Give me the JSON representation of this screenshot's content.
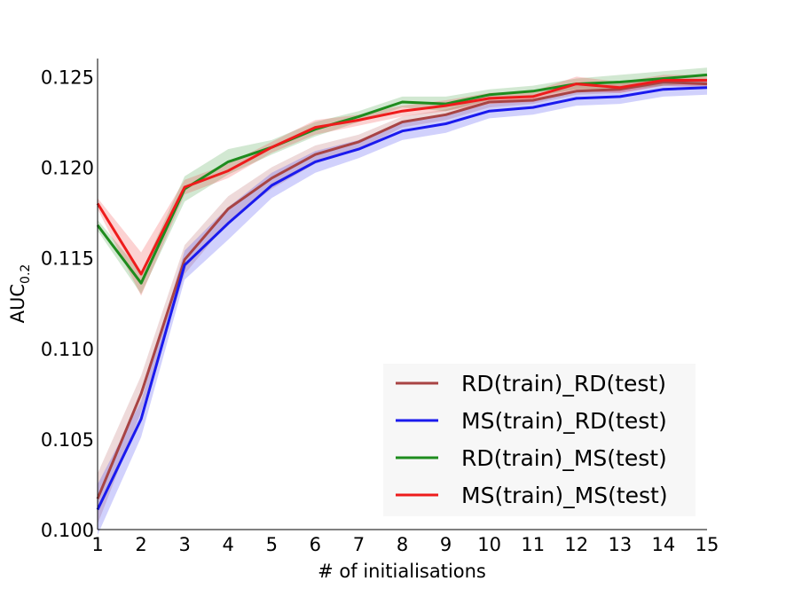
{
  "chart_data": {
    "type": "line",
    "title": "",
    "xlabel": "# of initialisations",
    "ylabel": "AUC",
    "ylabel_subscript": "0.2",
    "xlim": [
      1,
      15
    ],
    "ylim": [
      0.1,
      0.126
    ],
    "x_ticks": [
      1,
      2,
      3,
      4,
      5,
      6,
      7,
      8,
      9,
      10,
      11,
      12,
      13,
      14,
      15
    ],
    "x_tick_labels": [
      "1",
      "2",
      "3",
      "4",
      "5",
      "6",
      "7",
      "8",
      "9",
      "10",
      "11",
      "12",
      "13",
      "14",
      "15"
    ],
    "y_ticks": [
      0.1,
      0.105,
      0.11,
      0.115,
      0.12,
      0.125
    ],
    "y_tick_labels": [
      "0.100",
      "0.105",
      "0.110",
      "0.115",
      "0.120",
      "0.125"
    ],
    "legend_position": "lower-right",
    "x": [
      1,
      2,
      3,
      4,
      5,
      6,
      7,
      8,
      9,
      10,
      11,
      12,
      13,
      14,
      15
    ],
    "series": [
      {
        "name": "RD(train)_RD(test)",
        "color": "#a84444",
        "values": [
          0.1017,
          0.1075,
          0.1149,
          0.1177,
          0.1194,
          0.1207,
          0.1214,
          0.1225,
          0.1229,
          0.1236,
          0.1237,
          0.1242,
          0.1243,
          0.1247,
          0.1246
        ],
        "lower": [
          0.1003,
          0.1065,
          0.1141,
          0.117,
          0.1188,
          0.1202,
          0.121,
          0.1222,
          0.1226,
          0.1233,
          0.1235,
          0.124,
          0.1241,
          0.1245,
          0.1244
        ],
        "upper": [
          0.1031,
          0.1085,
          0.1157,
          0.1184,
          0.12,
          0.1212,
          0.1218,
          0.1228,
          0.1232,
          0.1239,
          0.124,
          0.1245,
          0.1246,
          0.1249,
          0.1249
        ]
      },
      {
        "name": "MS(train)_RD(test)",
        "color": "#1a1aee",
        "values": [
          0.1011,
          0.1061,
          0.1146,
          0.1169,
          0.119,
          0.1203,
          0.121,
          0.122,
          0.1224,
          0.1231,
          0.1233,
          0.1238,
          0.1239,
          0.1243,
          0.1244
        ],
        "lower": [
          0.0997,
          0.1051,
          0.1138,
          0.116,
          0.1183,
          0.1197,
          0.1205,
          0.1215,
          0.1219,
          0.1227,
          0.1229,
          0.1234,
          0.1235,
          0.1239,
          0.124
        ],
        "upper": [
          0.1025,
          0.1071,
          0.1154,
          0.1178,
          0.1197,
          0.1209,
          0.1215,
          0.1225,
          0.1229,
          0.1235,
          0.1237,
          0.1242,
          0.1243,
          0.1247,
          0.1248
        ]
      },
      {
        "name": "RD(train)_MS(test)",
        "color": "#1e8c1e",
        "values": [
          0.1168,
          0.1136,
          0.1188,
          0.1203,
          0.1211,
          0.1221,
          0.1228,
          0.1236,
          0.1235,
          0.124,
          0.1242,
          0.1246,
          0.1247,
          0.1249,
          0.1251
        ],
        "lower": [
          0.1165,
          0.113,
          0.1181,
          0.1196,
          0.1207,
          0.1217,
          0.1225,
          0.1233,
          0.1231,
          0.1237,
          0.1239,
          0.1243,
          0.1243,
          0.1245,
          0.1247
        ],
        "upper": [
          0.1171,
          0.1142,
          0.1195,
          0.121,
          0.1215,
          0.1225,
          0.1231,
          0.1239,
          0.1239,
          0.1243,
          0.1245,
          0.1249,
          0.1251,
          0.1253,
          0.1255
        ]
      },
      {
        "name": "MS(train)_MS(test)",
        "color": "#ee1c1c",
        "values": [
          0.118,
          0.1141,
          0.1189,
          0.1198,
          0.1211,
          0.1222,
          0.1226,
          0.1231,
          0.1234,
          0.1238,
          0.1239,
          0.1246,
          0.1244,
          0.1248,
          0.1248
        ],
        "lower": [
          0.1177,
          0.1129,
          0.1185,
          0.1194,
          0.1208,
          0.1218,
          0.1223,
          0.1228,
          0.1231,
          0.1235,
          0.1236,
          0.1242,
          0.1241,
          0.1245,
          0.1245
        ],
        "upper": [
          0.1183,
          0.1153,
          0.1193,
          0.1202,
          0.1214,
          0.1226,
          0.1229,
          0.1234,
          0.1237,
          0.1241,
          0.1242,
          0.125,
          0.1247,
          0.1251,
          0.1251
        ]
      }
    ]
  }
}
